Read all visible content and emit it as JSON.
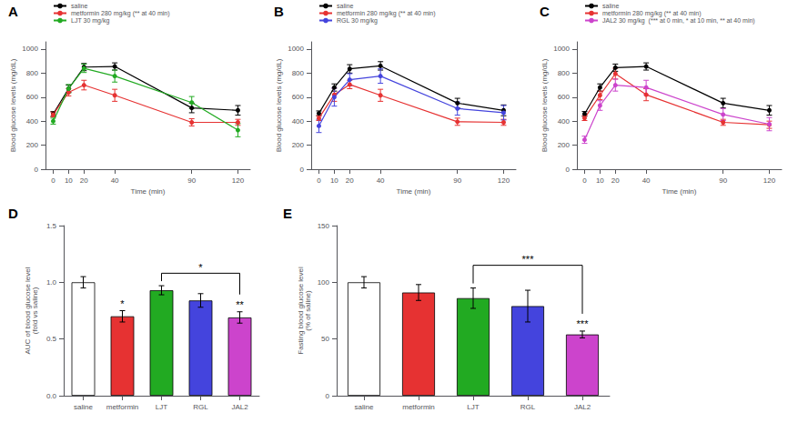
{
  "chart_data": [
    {
      "type": "line",
      "title": "A",
      "x": [
        0,
        10,
        20,
        40,
        90,
        120
      ],
      "series": [
        {
          "name": "saline",
          "color": "#000000",
          "values": [
            460,
            670,
            850,
            855,
            510,
            490
          ],
          "errors": [
            20,
            30,
            30,
            30,
            40,
            40
          ]
        },
        {
          "name": "metformin 280 mg/kg (** at 40 min)",
          "color": "#e63232",
          "values": [
            455,
            640,
            700,
            615,
            390,
            390
          ],
          "errors": [
            20,
            30,
            40,
            50,
            30,
            25
          ]
        },
        {
          "name": "LJT 30 mg/kg",
          "color": "#22aa22",
          "values": [
            400,
            670,
            840,
            775,
            555,
            325
          ],
          "errors": [
            25,
            35,
            35,
            50,
            50,
            55
          ]
        }
      ],
      "xlabel": "Time (min)",
      "ylabel": "Blood glucose levels (mg/dL)",
      "xlim": [
        -5,
        128
      ],
      "xticks": [
        0,
        10,
        20,
        40,
        90,
        120
      ],
      "ylim": [
        0,
        1060
      ],
      "yticks": [
        0,
        200,
        400,
        600,
        800,
        1000
      ],
      "marker": "circle",
      "grid": false,
      "legend": "top"
    },
    {
      "type": "line",
      "title": "B",
      "x": [
        0,
        10,
        20,
        40,
        90,
        120
      ],
      "series": [
        {
          "name": "saline",
          "color": "#000000",
          "values": [
            465,
            680,
            835,
            860,
            550,
            490
          ],
          "errors": [
            20,
            30,
            35,
            35,
            40,
            45
          ]
        },
        {
          "name": "metformin 280 mg/kg (** at 40 min)",
          "color": "#e63232",
          "values": [
            425,
            620,
            705,
            615,
            395,
            390
          ],
          "errors": [
            20,
            55,
            35,
            50,
            30,
            25
          ]
        },
        {
          "name": "RGL 30 mg/kg",
          "color": "#4444dd",
          "values": [
            360,
            600,
            745,
            775,
            505,
            470
          ],
          "errors": [
            55,
            75,
            50,
            60,
            55,
            60
          ]
        }
      ],
      "xlabel": "Time (min)",
      "ylabel": "Blood glucose levels (mg/dL)",
      "xlim": [
        -5,
        128
      ],
      "xticks": [
        0,
        10,
        20,
        40,
        90,
        120
      ],
      "ylim": [
        0,
        1060
      ],
      "yticks": [
        0,
        200,
        400,
        600,
        800,
        1000
      ],
      "marker": "circle",
      "grid": false,
      "legend": "top"
    },
    {
      "type": "line",
      "title": "C",
      "x": [
        0,
        10,
        20,
        40,
        90,
        120
      ],
      "series": [
        {
          "name": "saline",
          "color": "#000000",
          "values": [
            460,
            680,
            845,
            855,
            550,
            490
          ],
          "errors": [
            20,
            30,
            30,
            30,
            40,
            40
          ]
        },
        {
          "name": "metformin 280 mg/kg (** at 40 min)",
          "color": "#e63232",
          "values": [
            425,
            615,
            795,
            620,
            390,
            370
          ],
          "errors": [
            20,
            35,
            45,
            50,
            25,
            30
          ]
        },
        {
          "name": "JAL2 30 mg/kg  (*** at 0 min, * at 10 min, ** at 40 min)",
          "color": "#cc44cc",
          "values": [
            245,
            530,
            700,
            680,
            455,
            375
          ],
          "errors": [
            30,
            40,
            50,
            60,
            50,
            55
          ]
        }
      ],
      "xlabel": "Time (min)",
      "ylabel": "Blood glucose levels (mg/dL)",
      "xlim": [
        -5,
        128
      ],
      "xticks": [
        0,
        10,
        20,
        40,
        90,
        120
      ],
      "ylim": [
        0,
        1060
      ],
      "yticks": [
        0,
        200,
        400,
        600,
        800,
        1000
      ],
      "marker": "circle",
      "grid": false,
      "legend": "top"
    },
    {
      "type": "bar",
      "title": "D",
      "categories": [
        "saline",
        "metformin",
        "LJT",
        "RGL",
        "JAL2"
      ],
      "values": [
        1.0,
        0.7,
        0.93,
        0.84,
        0.69
      ],
      "errors": [
        0.05,
        0.05,
        0.04,
        0.06,
        0.05
      ],
      "colors": [
        "#ffffff",
        "#e63232",
        "#22aa22",
        "#4444dd",
        "#cc44cc"
      ],
      "ylabel": "AUC of blood glucose level\n(fold vs saline)",
      "ylim": [
        0,
        1.5
      ],
      "yticks": [
        {
          "value": 0,
          "label": "0.0"
        },
        0.5,
        {
          "value": 1,
          "label": "1.0"
        },
        1.5
      ],
      "grid": false,
      "annotations": [
        {
          "text": "*",
          "category": "metformin"
        },
        {
          "text": "**",
          "category": "JAL2"
        },
        {
          "text": "*",
          "from": "LJT",
          "to": "JAL2",
          "y": 1.08
        }
      ]
    },
    {
      "type": "bar",
      "title": "E",
      "categories": [
        "saline",
        "metformin",
        "LJT",
        "RGL",
        "JAL2"
      ],
      "values": [
        100,
        91,
        86,
        79,
        54
      ],
      "errors": [
        5,
        7,
        9,
        14,
        3
      ],
      "colors": [
        "#ffffff",
        "#e63232",
        "#22aa22",
        "#4444dd",
        "#cc44cc"
      ],
      "ylabel": "Fasting blood glucose level\n(% of saline)",
      "ylim": [
        0,
        150
      ],
      "yticks": [
        0,
        50,
        100,
        150
      ],
      "grid": false,
      "annotations": [
        {
          "text": "***",
          "category": "JAL2"
        },
        {
          "text": "***",
          "from": "LJT",
          "to": "JAL2",
          "y": 115
        }
      ]
    }
  ]
}
